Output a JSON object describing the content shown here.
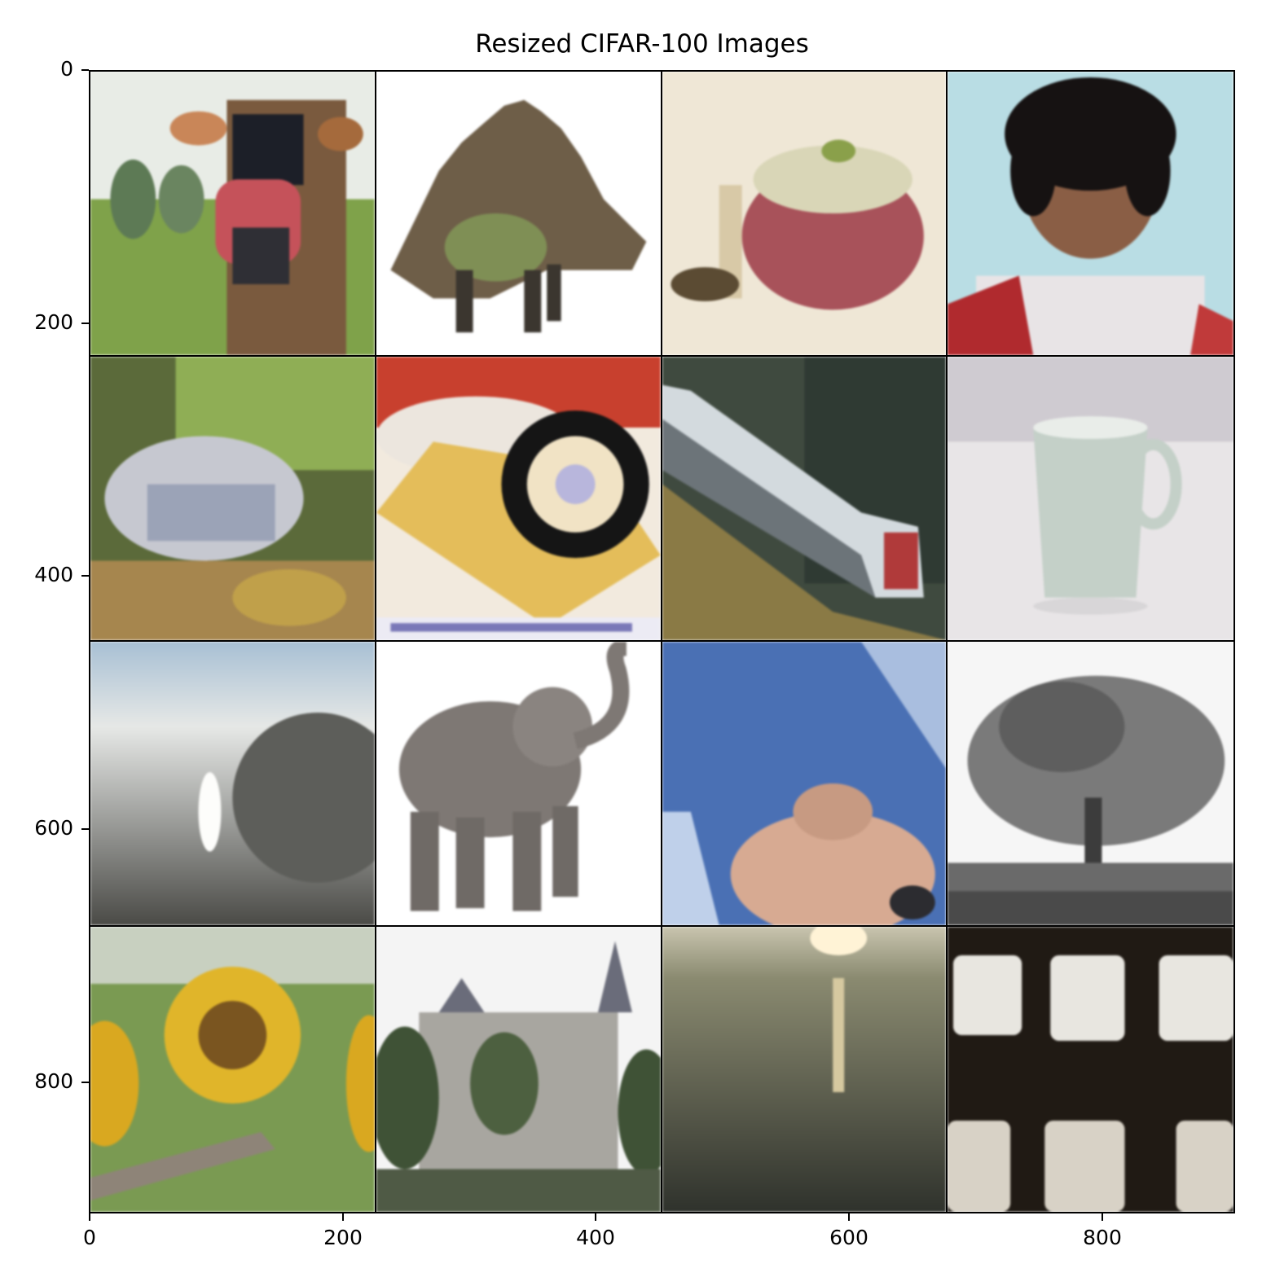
{
  "figure": {
    "title": "Resized CIFAR-100 Images",
    "x_ticks": [
      "0",
      "200",
      "400",
      "600",
      "800"
    ],
    "y_ticks": [
      "0",
      "200",
      "400",
      "600",
      "800"
    ]
  }
}
